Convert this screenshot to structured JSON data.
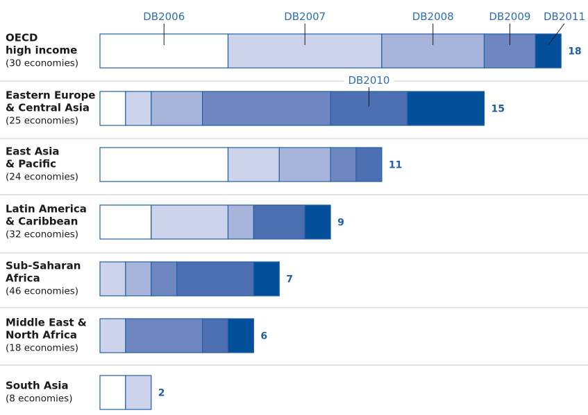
{
  "chart_data": {
    "type": "bar",
    "stacked": true,
    "orientation": "horizontal",
    "series": [
      {
        "name": "DB2006",
        "color": "#ffffff"
      },
      {
        "name": "DB2007",
        "color": "#cdd3ea"
      },
      {
        "name": "DB2008",
        "color": "#a8b4d9"
      },
      {
        "name": "DB2009",
        "color": "#6e87c1"
      },
      {
        "name": "DB2010",
        "color": "#4d6fb1"
      },
      {
        "name": "DB2011",
        "color": "#044f9a"
      }
    ],
    "categories": [
      {
        "label_lines": [
          "OECD",
          "high income"
        ],
        "economies": "(30 economies)",
        "values": [
          5,
          6,
          4,
          2,
          0,
          1
        ],
        "total": "18"
      },
      {
        "label_lines": [
          "Eastern Europe",
          "& Central Asia"
        ],
        "economies": "(25 economies)",
        "values": [
          1,
          1,
          2,
          5,
          3,
          3
        ],
        "total": "15"
      },
      {
        "label_lines": [
          "East Asia",
          "& Pacific"
        ],
        "economies": "(24 economies)",
        "values": [
          5,
          2,
          2,
          1,
          1,
          0
        ],
        "total": "11"
      },
      {
        "label_lines": [
          "Latin America",
          "& Caribbean"
        ],
        "economies": "(32 economies)",
        "values": [
          2,
          3,
          1,
          0,
          2,
          1
        ],
        "total": "9"
      },
      {
        "label_lines": [
          "Sub-Saharan",
          "Africa"
        ],
        "economies": "(46 economies)",
        "values": [
          0,
          1,
          1,
          1,
          3,
          1
        ],
        "total": "7"
      },
      {
        "label_lines": [
          "Middle East &",
          "North Africa"
        ],
        "economies": "(18 economies)",
        "values": [
          0,
          1,
          0,
          3,
          1,
          1
        ],
        "total": "6"
      },
      {
        "label_lines": [
          "South Asia"
        ],
        "economies": "(8 economies)",
        "values": [
          1,
          1,
          0,
          0,
          0,
          0
        ],
        "total": "2"
      }
    ],
    "annotations": [
      {
        "text": "DB2006",
        "category": 0,
        "series": 0
      },
      {
        "text": "DB2007",
        "category": 0,
        "series": 1
      },
      {
        "text": "DB2008",
        "category": 0,
        "series": 2
      },
      {
        "text": "DB2009",
        "category": 0,
        "series": 3
      },
      {
        "text": "DB2011",
        "category": 0,
        "series": 5
      },
      {
        "text": "DB2010",
        "category": 1,
        "series": 4
      }
    ],
    "bar_edge_color": "#1f5fa5",
    "separator_color": "#c8c8c8"
  }
}
